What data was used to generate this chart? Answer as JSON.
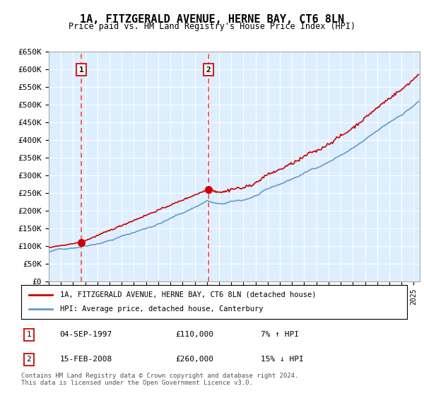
{
  "title": "1A, FITZGERALD AVENUE, HERNE BAY, CT6 8LN",
  "subtitle": "Price paid vs. HM Land Registry's House Price Index (HPI)",
  "legend_label_red": "1A, FITZGERALD AVENUE, HERNE BAY, CT6 8LN (detached house)",
  "legend_label_blue": "HPI: Average price, detached house, Canterbury",
  "footer": "Contains HM Land Registry data © Crown copyright and database right 2024.\nThis data is licensed under the Open Government Licence v3.0.",
  "transactions": [
    {
      "label": "1",
      "date": "04-SEP-1997",
      "price": "£110,000",
      "hpi": "7% ↑ HPI",
      "year": 1997.67
    },
    {
      "label": "2",
      "date": "15-FEB-2008",
      "price": "£260,000",
      "hpi": "15% ↓ HPI",
      "year": 2008.12
    }
  ],
  "ylim": [
    0,
    650000
  ],
  "yticks": [
    0,
    50000,
    100000,
    150000,
    200000,
    250000,
    300000,
    350000,
    400000,
    450000,
    500000,
    550000,
    600000,
    650000
  ],
  "ytick_labels": [
    "£0",
    "£50K",
    "£100K",
    "£150K",
    "£200K",
    "£250K",
    "£300K",
    "£350K",
    "£400K",
    "£450K",
    "£500K",
    "£550K",
    "£600K",
    "£650K"
  ],
  "xlim_start": 1995.0,
  "xlim_end": 2025.5,
  "background_color": "#ddeeff",
  "plot_bg_color": "#ddeeff",
  "line_color_red": "#cc0000",
  "line_color_blue": "#6699cc",
  "grid_color": "#ffffff",
  "vline_color": "#ff4444",
  "marker_color": "#cc0000",
  "box_color": "#cc2222"
}
